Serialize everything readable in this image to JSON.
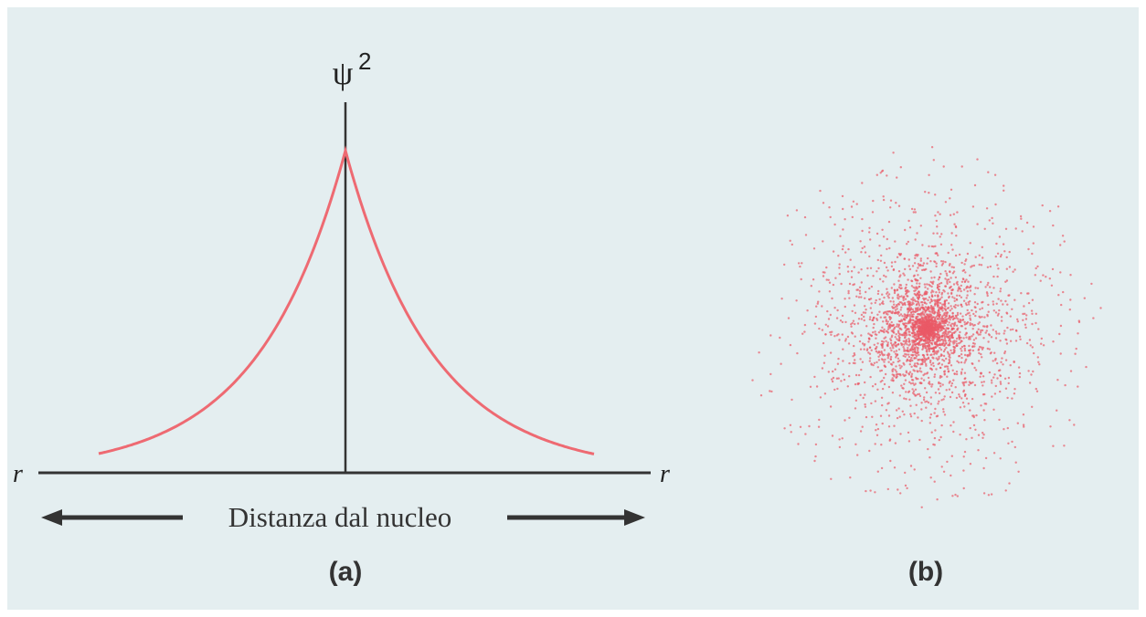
{
  "panel_a": {
    "y_axis_label": "ψ",
    "y_axis_exponent": "2",
    "x_axis_left_label": "r",
    "x_axis_right_label": "r",
    "axis_caption": "Distanza dal nucleo",
    "caption": "(a)"
  },
  "panel_b": {
    "caption": "(b)"
  }
}
